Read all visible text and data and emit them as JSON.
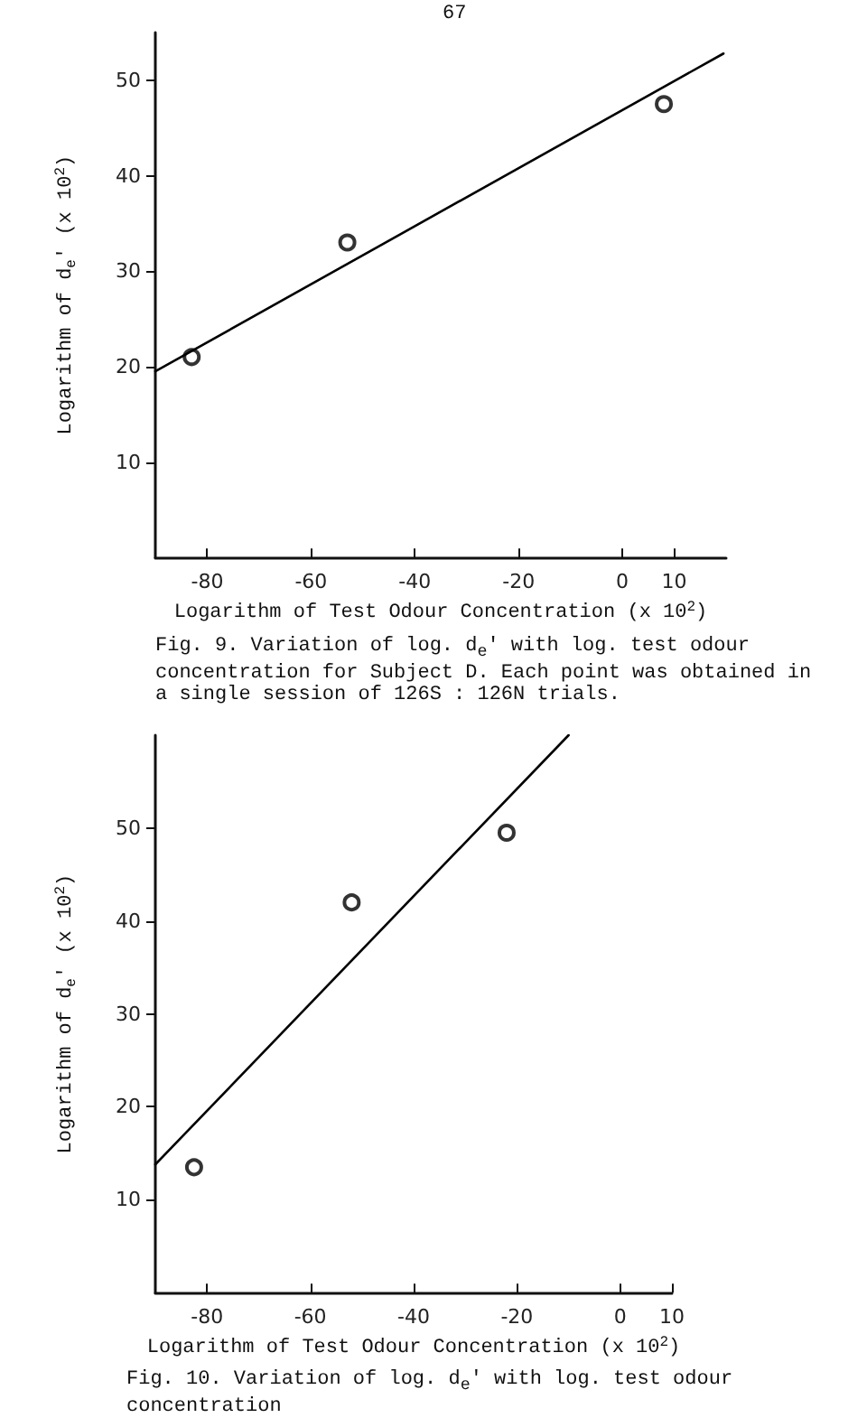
{
  "chart_data": [
    {
      "type": "scatter",
      "xlabel": "Logarithm of Test Odour Concentration (x 10$^{2}$)",
      "ylabel": "Logarithm of d$_{e}$' (x 10$^{2}$)",
      "annotations": [
        "67",
        "Fig.  9.  Variation of log. d$_{e}$' with log. test odour concentration for Subject D.  Each point was obtained in a single session of 126S : 126N trials."
      ],
      "xlim": [
        -90,
        20
      ],
      "xticks": [
        -80,
        -60,
        -40,
        -20,
        0,
        10
      ],
      "ylim": [
        0,
        55
      ],
      "yticks": [
        10,
        20,
        30,
        40,
        50
      ],
      "grid": false,
      "marker": "circle",
      "series": [
        {
          "color": "#000000",
          "x": [
            -83,
            -53,
            8
          ],
          "values": [
            21,
            33,
            47.5
          ]
        },
        {
          "type": "line",
          "color": "#000000",
          "marker": "none",
          "line_style": "solid",
          "x": [
            -90,
            19.5
          ],
          "values": [
            19.5,
            52.8
          ]
        }
      ]
    },
    {
      "type": "scatter",
      "xlabel": "Logarithm of Test Odour Concentration (x 10$^{2}$)",
      "ylabel": "Logarithm of d$_{e}$' (x 10$^{2}$)",
      "annotations": [
        "Fig. 10.  Variation of log. d$_{e}$' with log. test odour concentration"
      ],
      "xlim": [
        -90,
        10
      ],
      "xticks": [
        -80,
        -60,
        -40,
        -20,
        0,
        10
      ],
      "ylim": [
        0,
        60
      ],
      "yticks": [
        10,
        20,
        30,
        40,
        50
      ],
      "grid": false,
      "marker": "circle",
      "series": [
        {
          "color": "#000000",
          "x": [
            -82.5,
            -52,
            -22
          ],
          "values": [
            13.5,
            42,
            49.5
          ]
        },
        {
          "type": "line",
          "color": "#000000",
          "marker": "none",
          "line_style": "solid",
          "x": [
            -90,
            -10
          ],
          "values": [
            13.8,
            60
          ]
        }
      ]
    }
  ]
}
